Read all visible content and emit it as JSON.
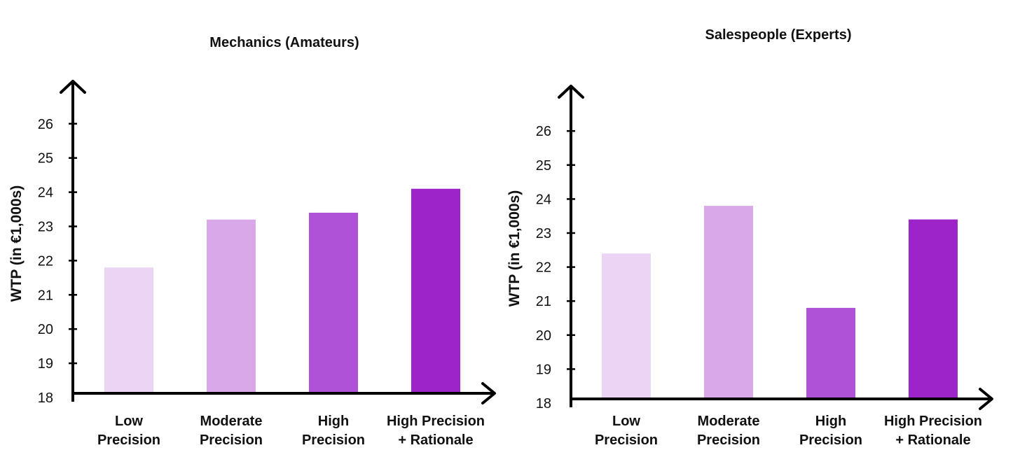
{
  "chart_data": [
    {
      "type": "bar",
      "title": "Mechanics (Amateurs)",
      "xlabel": "",
      "ylabel": "WTP (in €1,000s)",
      "categories": [
        [
          "Low",
          "Precision"
        ],
        [
          "Moderate",
          "Precision"
        ],
        [
          "High",
          "Precision"
        ],
        [
          "High Precision",
          "+ Rationale"
        ]
      ],
      "values": [
        21.8,
        23.2,
        23.4,
        24.1
      ],
      "ylim": [
        18,
        27.5
      ],
      "yticks": [
        18,
        19,
        20,
        21,
        22,
        23,
        24,
        25,
        26
      ],
      "colors": [
        "#ecd5f4",
        "#d8a8e8",
        "#b052d8",
        "#9d24c9"
      ],
      "grid": false
    },
    {
      "type": "bar",
      "title": "Salespeople (Experts)",
      "xlabel": "",
      "ylabel": "WTP (in €1,000s)",
      "categories": [
        [
          "Low",
          "Precision"
        ],
        [
          "Moderate",
          "Precision"
        ],
        [
          "High",
          "Precision"
        ],
        [
          "High Precision",
          "+ Rationale"
        ]
      ],
      "values": [
        22.4,
        23.8,
        20.8,
        23.4
      ],
      "ylim": [
        18,
        27.5
      ],
      "yticks": [
        18,
        19,
        20,
        21,
        22,
        23,
        24,
        25,
        26
      ],
      "colors": [
        "#ecd5f4",
        "#d8a8e8",
        "#b052d8",
        "#9d24c9"
      ],
      "grid": false
    }
  ]
}
